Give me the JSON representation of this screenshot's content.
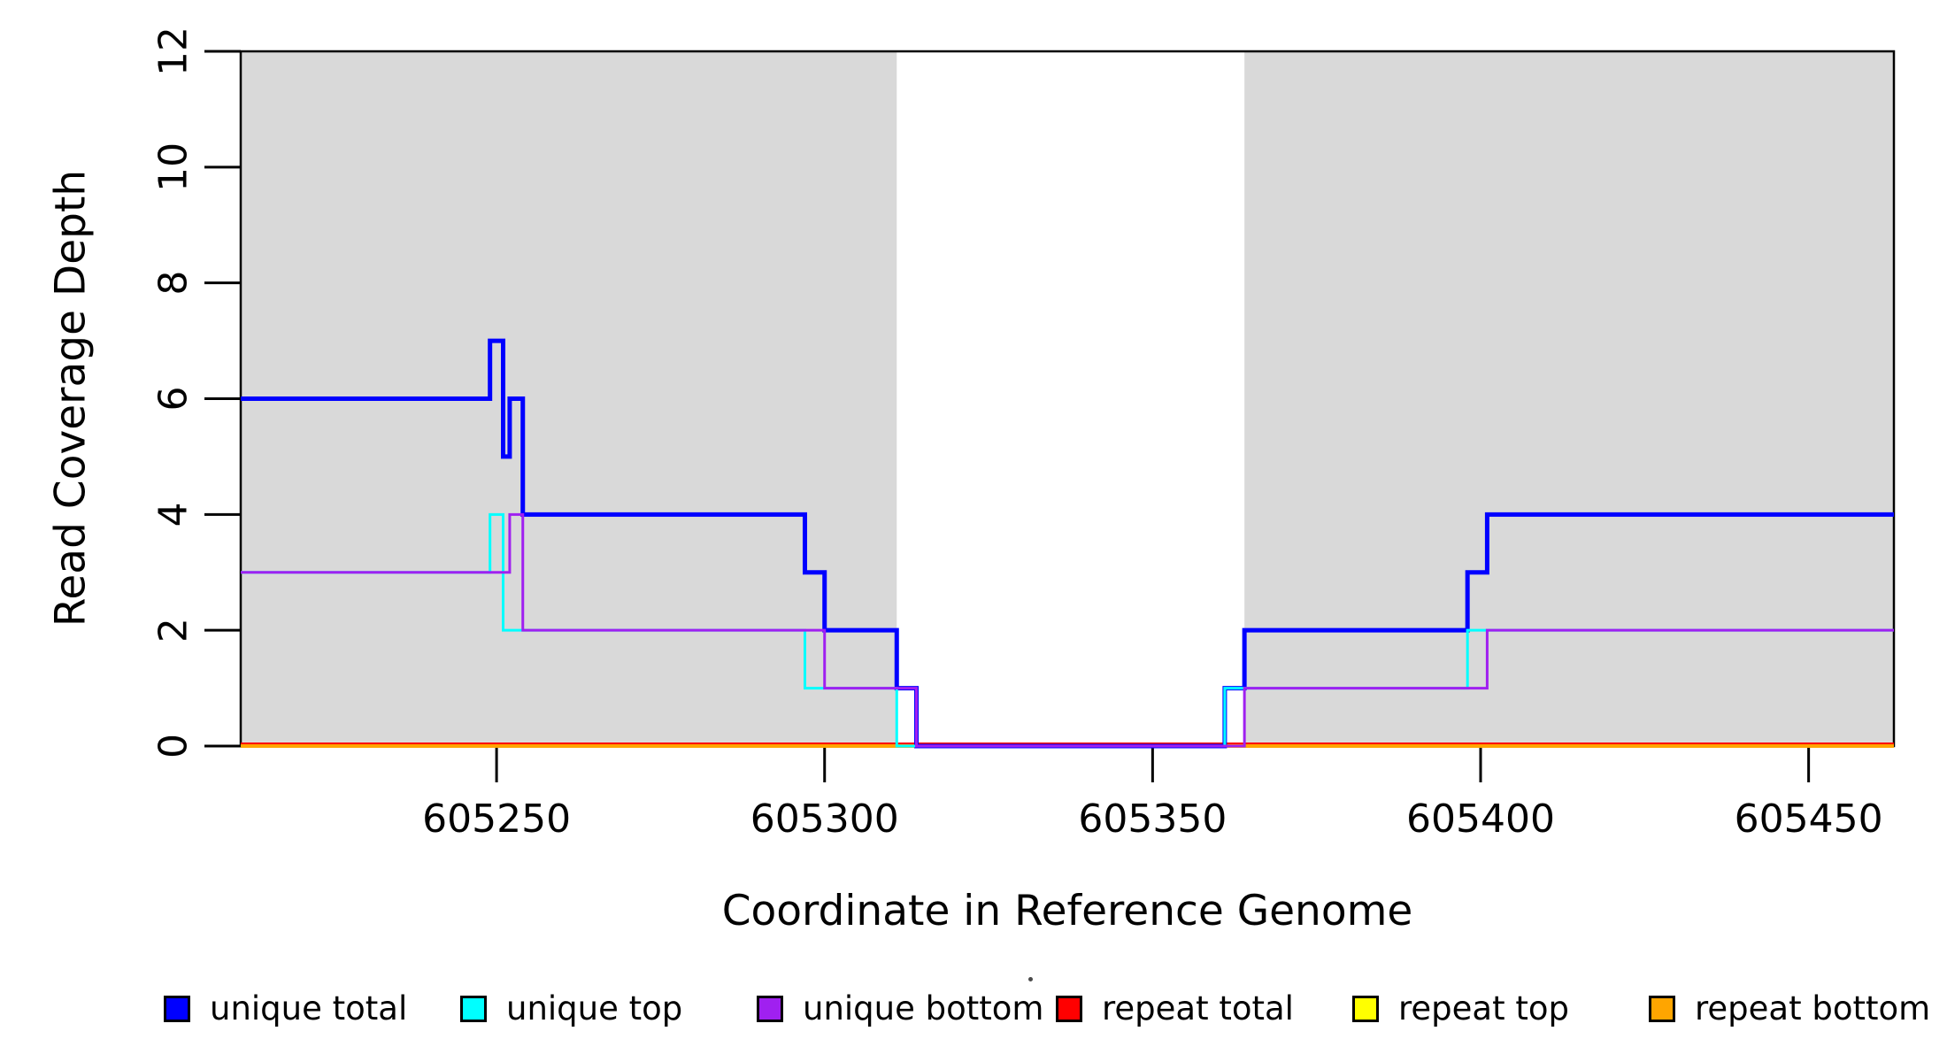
{
  "chart_data": {
    "type": "line",
    "subtype": "step",
    "title": "",
    "xlabel": "Coordinate in Reference Genome",
    "ylabel": "Read Coverage Depth",
    "xlim": [
      605211,
      605463
    ],
    "ylim": [
      0,
      12
    ],
    "x_ticks": [
      605250,
      605300,
      605350,
      605400,
      605450
    ],
    "y_ticks": [
      0,
      2,
      4,
      6,
      8,
      10,
      12
    ],
    "grid": false,
    "legend_position": "bottom",
    "shade_color": "#d9d9d9",
    "axis_color": "#000000",
    "background_color": "#ffffff",
    "shaded_regions": [
      {
        "from": 605211,
        "to": 605311
      },
      {
        "from": 605364,
        "to": 605463
      }
    ],
    "x_end": 605463,
    "series": [
      {
        "name": "repeat total",
        "color": "#ff0000",
        "width": 6,
        "dy": -1,
        "steps": [
          [
            605211,
            0
          ]
        ]
      },
      {
        "name": "repeat top",
        "color": "#ffff00",
        "width": 4,
        "dy": 0,
        "steps": [
          [
            605211,
            0
          ]
        ]
      },
      {
        "name": "repeat bottom",
        "color": "#ffa500",
        "width": 4,
        "dy": 0,
        "steps": [
          [
            605211,
            0
          ]
        ]
      },
      {
        "name": "unique total",
        "color": "#0000ff",
        "width": 5,
        "dy": 0,
        "steps": [
          [
            605211,
            6
          ],
          [
            605249,
            7
          ],
          [
            605251,
            5
          ],
          [
            605252,
            6
          ],
          [
            605254,
            4
          ],
          [
            605297,
            3
          ],
          [
            605300,
            2
          ],
          [
            605311,
            1
          ],
          [
            605314,
            0
          ],
          [
            605361,
            1
          ],
          [
            605364,
            2
          ],
          [
            605398,
            3
          ],
          [
            605401,
            4
          ]
        ]
      },
      {
        "name": "unique top",
        "color": "#00ffff",
        "width": 3,
        "dy": 0,
        "steps": [
          [
            605211,
            3
          ],
          [
            605249,
            4
          ],
          [
            605251,
            2
          ],
          [
            605297,
            1
          ],
          [
            605311,
            0
          ],
          [
            605361,
            1
          ],
          [
            605398,
            2
          ]
        ]
      },
      {
        "name": "unique bottom",
        "color": "#a020f0",
        "width": 3,
        "dy": 0,
        "steps": [
          [
            605211,
            3
          ],
          [
            605252,
            4
          ],
          [
            605254,
            2
          ],
          [
            605300,
            1
          ],
          [
            605314,
            0
          ],
          [
            605364,
            1
          ],
          [
            605401,
            2
          ]
        ]
      }
    ],
    "legend": [
      {
        "label": "unique total",
        "color": "#0000ff"
      },
      {
        "label": "unique top",
        "color": "#00ffff"
      },
      {
        "label": "unique bottom",
        "color": "#a020f0"
      },
      {
        "label": "repeat total",
        "color": "#ff0000"
      },
      {
        "label": "repeat top",
        "color": "#ffff00"
      },
      {
        "label": "repeat bottom",
        "color": "#ffa500"
      }
    ]
  }
}
